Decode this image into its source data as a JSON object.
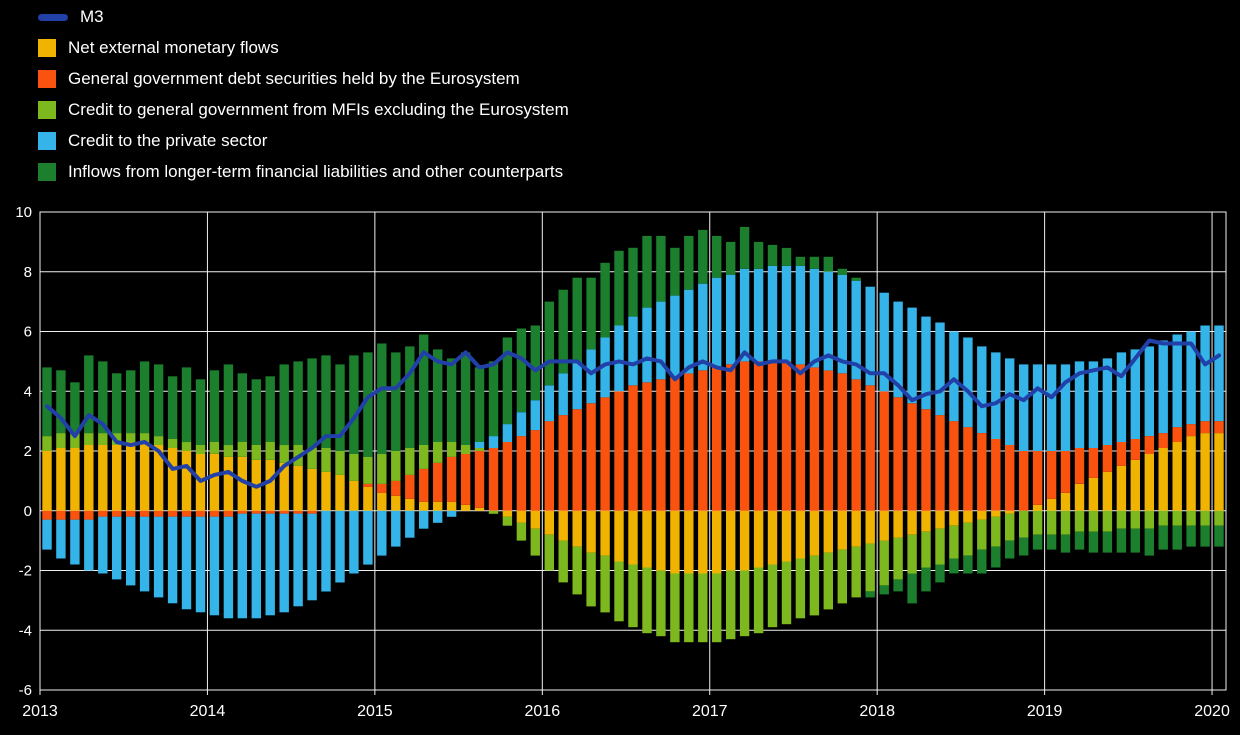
{
  "page": {
    "background_color": "#000000",
    "text_color": "#ffffff"
  },
  "legend": {
    "position": "top-left",
    "items": [
      {
        "label": "M3",
        "color": "#2140a8",
        "swatch": "line"
      },
      {
        "label": "Net external monetary flows",
        "color": "#f0b400",
        "swatch": "box"
      },
      {
        "label": "General government debt securities held by the Eurosystem",
        "color": "#fa5310",
        "swatch": "box"
      },
      {
        "label": "Credit to general government from MFIs excluding the Eurosystem",
        "color": "#7db81f",
        "swatch": "box"
      },
      {
        "label": "Credit to the private sector",
        "color": "#35b4ea",
        "swatch": "box"
      },
      {
        "label": "Inflows from longer-term financial liabilities and other counterparts",
        "color": "#1b7f2e",
        "swatch": "box"
      }
    ]
  },
  "chart_data": {
    "type": "bar",
    "subtype": "stacked-monthly-bars-with-line-overlay",
    "title": "",
    "x_start": "2013-01",
    "x_end": "2020-01",
    "xtick_labels": [
      "2013",
      "2014",
      "2015",
      "2016",
      "2017",
      "2018",
      "2019",
      "2020"
    ],
    "ytick_labels": [
      "-6",
      "-4",
      "-2",
      "0",
      "2",
      "4",
      "6",
      "8",
      "10"
    ],
    "ylim": [
      -6,
      10
    ],
    "ytick_step": 2,
    "grid": "on",
    "grid_color": "#f0f0f0",
    "text_color": "#ffffff",
    "legend_position": "top-left",
    "series": [
      {
        "name": "Net external monetary flows",
        "color": "#f0b400",
        "values": [
          2.0,
          2.1,
          2.1,
          2.2,
          2.2,
          2.2,
          2.3,
          2.3,
          2.2,
          2.1,
          2.0,
          1.9,
          1.9,
          1.8,
          1.8,
          1.7,
          1.7,
          1.6,
          1.5,
          1.4,
          1.3,
          1.2,
          1.0,
          0.8,
          0.6,
          0.5,
          0.4,
          0.3,
          0.3,
          0.3,
          0.2,
          0.1,
          0.0,
          -0.2,
          -0.4,
          -0.6,
          -0.8,
          -1.0,
          -1.2,
          -1.4,
          -1.5,
          -1.7,
          -1.8,
          -1.9,
          -2.0,
          -2.1,
          -2.1,
          -2.1,
          -2.1,
          -2.0,
          -2.0,
          -1.9,
          -1.8,
          -1.7,
          -1.6,
          -1.5,
          -1.4,
          -1.3,
          -1.2,
          -1.1,
          -1.0,
          -0.9,
          -0.8,
          -0.7,
          -0.6,
          -0.5,
          -0.4,
          -0.3,
          -0.2,
          -0.1,
          0.0,
          0.2,
          0.4,
          0.6,
          0.9,
          1.1,
          1.3,
          1.5,
          1.7,
          1.9,
          2.1,
          2.3,
          2.5,
          2.6,
          2.6
        ]
      },
      {
        "name": "General government debt securities held by the Eurosystem",
        "color": "#fa5310",
        "values": [
          -0.3,
          -0.3,
          -0.3,
          -0.3,
          -0.2,
          -0.2,
          -0.2,
          -0.2,
          -0.2,
          -0.2,
          -0.2,
          -0.2,
          -0.2,
          -0.2,
          -0.1,
          -0.1,
          -0.1,
          -0.1,
          -0.1,
          -0.1,
          0.0,
          0.0,
          0.0,
          0.1,
          0.3,
          0.5,
          0.8,
          1.1,
          1.3,
          1.5,
          1.7,
          1.9,
          2.1,
          2.3,
          2.5,
          2.7,
          3.0,
          3.2,
          3.4,
          3.6,
          3.8,
          4.0,
          4.2,
          4.3,
          4.4,
          4.5,
          4.6,
          4.7,
          4.8,
          4.9,
          5.0,
          5.0,
          5.0,
          5.0,
          4.9,
          4.8,
          4.7,
          4.6,
          4.4,
          4.2,
          4.0,
          3.8,
          3.6,
          3.4,
          3.2,
          3.0,
          2.8,
          2.6,
          2.4,
          2.2,
          2.0,
          1.8,
          1.6,
          1.4,
          1.2,
          1.0,
          0.9,
          0.8,
          0.7,
          0.6,
          0.5,
          0.5,
          0.4,
          0.4,
          0.4
        ]
      },
      {
        "name": "Credit to general government from MFIs excluding the Eurosystem",
        "color": "#7db81f",
        "values": [
          0.5,
          0.5,
          0.5,
          0.4,
          0.4,
          0.4,
          0.3,
          0.3,
          0.3,
          0.3,
          0.3,
          0.3,
          0.4,
          0.4,
          0.5,
          0.5,
          0.6,
          0.6,
          0.7,
          0.7,
          0.8,
          0.8,
          0.9,
          0.9,
          1.0,
          1.0,
          0.9,
          0.8,
          0.7,
          0.5,
          0.3,
          0.1,
          -0.1,
          -0.3,
          -0.6,
          -0.9,
          -1.2,
          -1.4,
          -1.6,
          -1.8,
          -1.9,
          -2.0,
          -2.1,
          -2.2,
          -2.2,
          -2.3,
          -2.3,
          -2.3,
          -2.3,
          -2.3,
          -2.2,
          -2.2,
          -2.1,
          -2.1,
          -2.0,
          -2.0,
          -1.9,
          -1.8,
          -1.7,
          -1.6,
          -1.5,
          -1.4,
          -1.3,
          -1.2,
          -1.2,
          -1.1,
          -1.1,
          -1.0,
          -1.0,
          -0.9,
          -0.9,
          -0.8,
          -0.8,
          -0.8,
          -0.7,
          -0.7,
          -0.7,
          -0.6,
          -0.6,
          -0.6,
          -0.5,
          -0.5,
          -0.5,
          -0.5,
          -0.5
        ]
      },
      {
        "name": "Credit to the private sector",
        "color": "#35b4ea",
        "values": [
          -1.0,
          -1.3,
          -1.5,
          -1.7,
          -1.9,
          -2.1,
          -2.3,
          -2.5,
          -2.7,
          -2.9,
          -3.1,
          -3.2,
          -3.3,
          -3.4,
          -3.5,
          -3.5,
          -3.4,
          -3.3,
          -3.1,
          -2.9,
          -2.7,
          -2.4,
          -2.1,
          -1.8,
          -1.5,
          -1.2,
          -0.9,
          -0.6,
          -0.4,
          -0.2,
          0.0,
          0.2,
          0.4,
          0.6,
          0.8,
          1.0,
          1.2,
          1.4,
          1.6,
          1.8,
          2.0,
          2.2,
          2.3,
          2.5,
          2.6,
          2.7,
          2.8,
          2.9,
          3.0,
          3.0,
          3.1,
          3.1,
          3.2,
          3.2,
          3.3,
          3.3,
          3.3,
          3.3,
          3.3,
          3.3,
          3.3,
          3.2,
          3.2,
          3.1,
          3.1,
          3.0,
          3.0,
          2.9,
          2.9,
          2.9,
          2.9,
          2.9,
          2.9,
          2.9,
          2.9,
          2.9,
          2.9,
          3.0,
          3.0,
          3.0,
          3.1,
          3.1,
          3.1,
          3.2,
          3.2
        ]
      },
      {
        "name": "Inflows from longer-term financial liabilities and other counterparts",
        "color": "#1b7f2e",
        "values": [
          2.3,
          2.1,
          1.7,
          2.6,
          2.4,
          2.0,
          2.1,
          2.4,
          2.4,
          2.1,
          2.5,
          2.2,
          2.4,
          2.7,
          2.3,
          2.2,
          2.2,
          2.7,
          2.8,
          3.0,
          3.1,
          2.9,
          3.3,
          3.5,
          3.7,
          3.3,
          3.4,
          3.7,
          3.1,
          2.8,
          3.1,
          2.5,
          2.5,
          2.9,
          2.8,
          2.5,
          2.8,
          2.8,
          2.8,
          2.4,
          2.5,
          2.5,
          2.3,
          2.4,
          2.2,
          1.6,
          1.8,
          1.8,
          1.4,
          1.1,
          1.4,
          0.9,
          0.7,
          0.6,
          0.3,
          0.4,
          0.5,
          0.2,
          0.1,
          -0.2,
          -0.3,
          -0.4,
          -1.0,
          -0.8,
          -0.6,
          -0.5,
          -0.6,
          -0.8,
          -0.7,
          -0.6,
          -0.6,
          -0.5,
          -0.5,
          -0.6,
          -0.6,
          -0.7,
          -0.7,
          -0.8,
          -0.8,
          -0.9,
          -0.8,
          -0.8,
          -0.7,
          -0.7,
          -0.7
        ]
      }
    ],
    "line": {
      "name": "M3",
      "color": "#2140a8",
      "values": [
        3.5,
        3.1,
        2.5,
        3.2,
        2.9,
        2.3,
        2.2,
        2.3,
        2.0,
        1.4,
        1.5,
        1.0,
        1.2,
        1.3,
        1.0,
        0.8,
        1.0,
        1.5,
        1.8,
        2.1,
        2.5,
        2.5,
        3.1,
        3.8,
        4.1,
        4.1,
        4.6,
        5.3,
        5.0,
        4.9,
        5.3,
        4.8,
        4.9,
        5.3,
        5.1,
        4.7,
        5.0,
        5.0,
        5.0,
        4.6,
        4.9,
        5.0,
        4.9,
        5.1,
        5.0,
        4.4,
        4.8,
        5.0,
        4.8,
        4.7,
        5.3,
        4.9,
        5.0,
        5.0,
        4.6,
        5.0,
        5.2,
        5.0,
        4.9,
        4.6,
        4.6,
        4.2,
        3.7,
        3.9,
        4.0,
        4.4,
        4.0,
        3.5,
        3.6,
        3.9,
        3.7,
        4.1,
        3.8,
        4.3,
        4.6,
        4.7,
        4.8,
        4.5,
        5.1,
        5.7,
        5.6,
        5.6,
        5.6,
        4.9,
        5.2
      ]
    }
  }
}
